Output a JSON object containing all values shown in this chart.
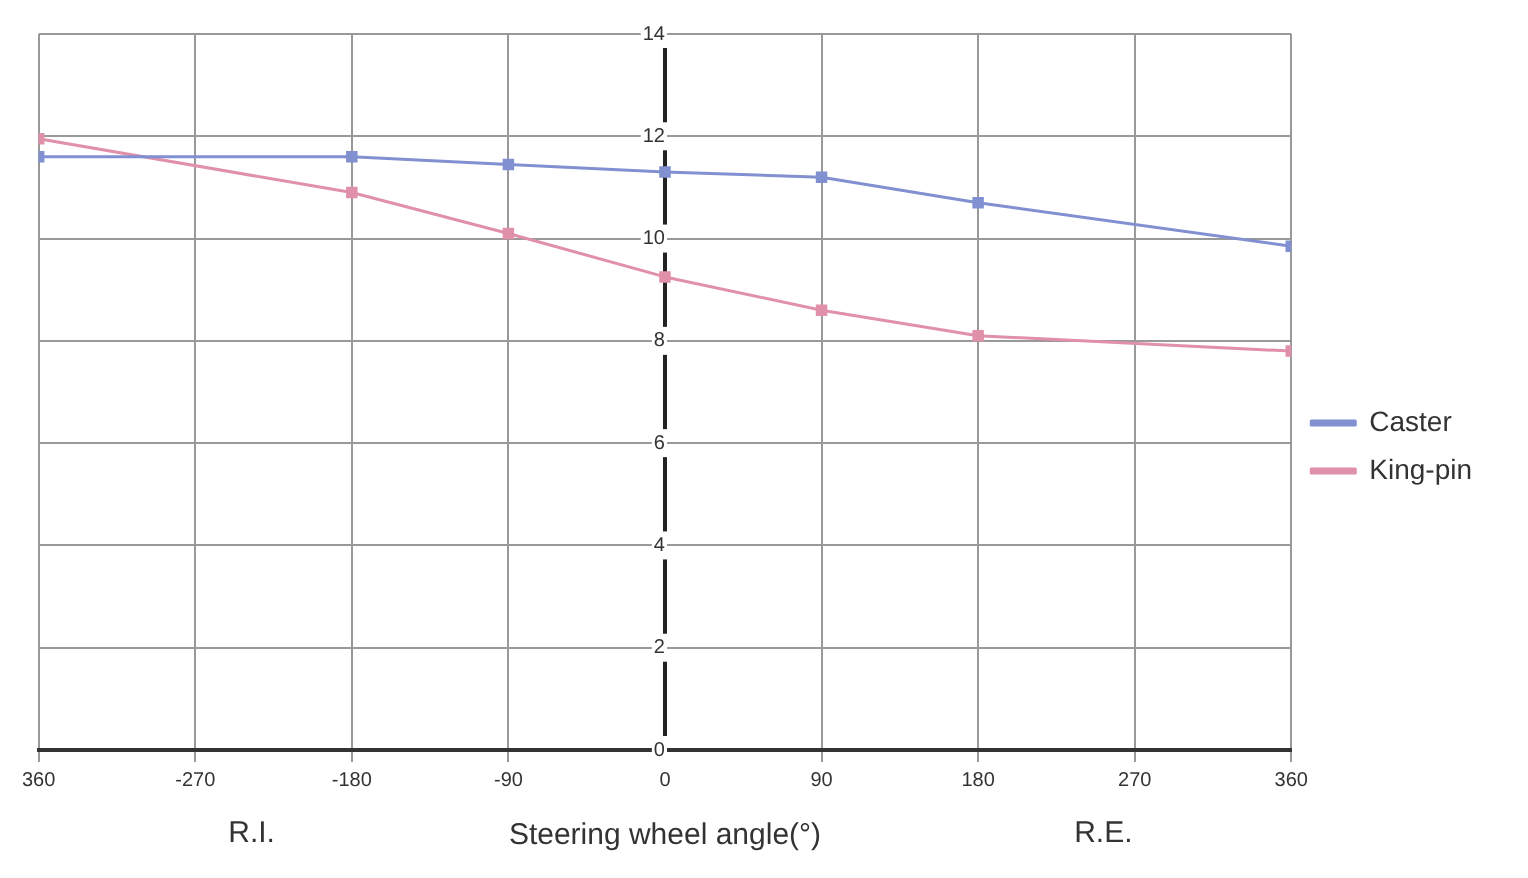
{
  "chart_data": {
    "type": "line",
    "xlabel": "Steering wheel angle(°)",
    "annotations": [
      "R.I.",
      "R.E."
    ],
    "x": [
      -360,
      -180,
      -90,
      0,
      90,
      180,
      360
    ],
    "series": [
      {
        "name": "Caster",
        "color": "#8090d0",
        "values": [
          11.6,
          11.6,
          11.45,
          11.3,
          11.2,
          10.7,
          9.85
        ]
      },
      {
        "name": "King-pin",
        "color": "#e090a8",
        "values": [
          11.95,
          10.9,
          10.1,
          9.25,
          8.6,
          8.1,
          7.8
        ]
      }
    ],
    "xlim": [
      -360,
      360
    ],
    "xticks": [
      {
        "value": -360,
        "label": "360"
      },
      -270,
      -180,
      -90,
      0,
      90,
      180,
      270,
      360
    ],
    "ylim": [
      0,
      14
    ],
    "yticks": [
      0,
      2,
      4,
      6,
      8,
      10,
      12,
      14
    ],
    "grid": true,
    "legend": "right",
    "marker": "square",
    "line_style": "solid"
  }
}
